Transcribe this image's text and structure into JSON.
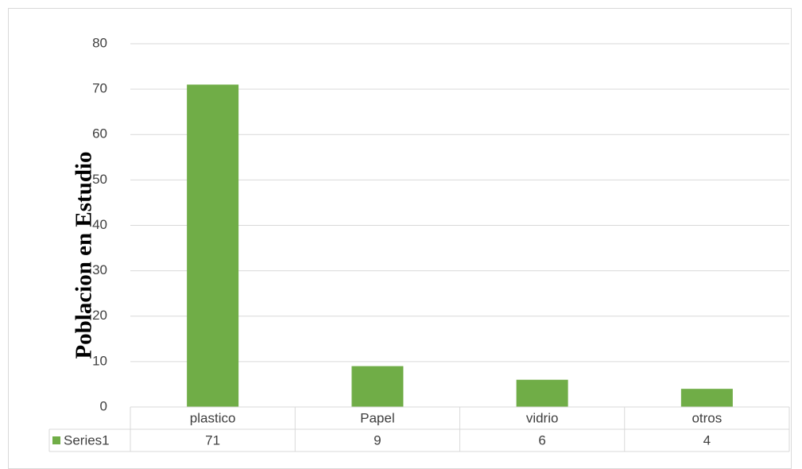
{
  "chart_data": {
    "type": "bar",
    "categories": [
      "plastico",
      "Papel",
      "vidrio",
      "otros"
    ],
    "series": [
      {
        "name": "Series1",
        "values": [
          71,
          9,
          6,
          4
        ],
        "color": "#70ad47"
      }
    ],
    "ylabel": "Poblacion en Estudio",
    "ylim": [
      0,
      80
    ],
    "yticks": [
      0,
      10,
      20,
      30,
      40,
      50,
      60,
      70,
      80
    ],
    "grid": true,
    "legend": "data-table-below",
    "data_table": true
  }
}
